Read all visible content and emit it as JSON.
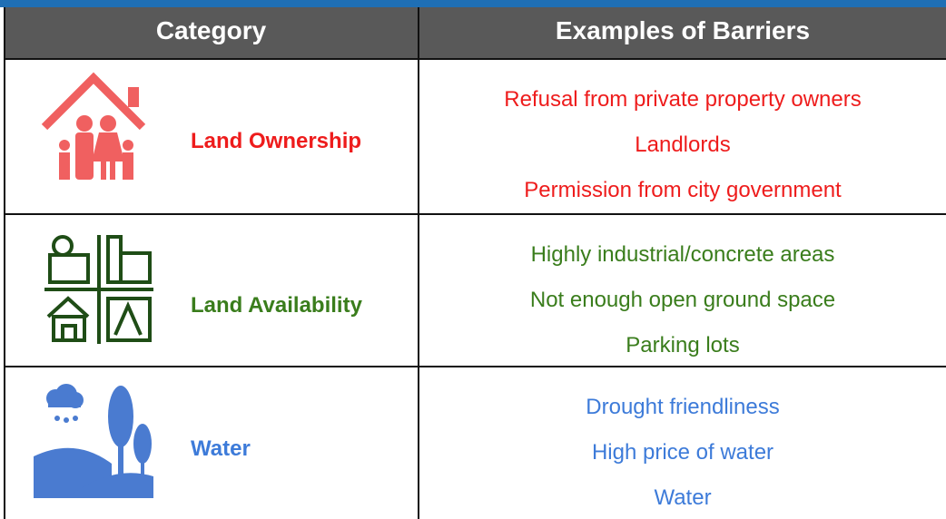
{
  "table": {
    "header": [
      "Category",
      "Examples of Barriers"
    ],
    "rows": [
      {
        "category": "Land Ownership",
        "examples": [
          "Refusal from private property owners",
          "Landlords",
          "Permission from city government"
        ]
      },
      {
        "category": "Land Availability",
        "examples": [
          "Highly industrial/concrete areas",
          "Not enough open ground space",
          "Parking lots"
        ]
      },
      {
        "category": "Water",
        "examples": [
          "Drought friendliness",
          "High price of water",
          "Water"
        ]
      }
    ]
  }
}
